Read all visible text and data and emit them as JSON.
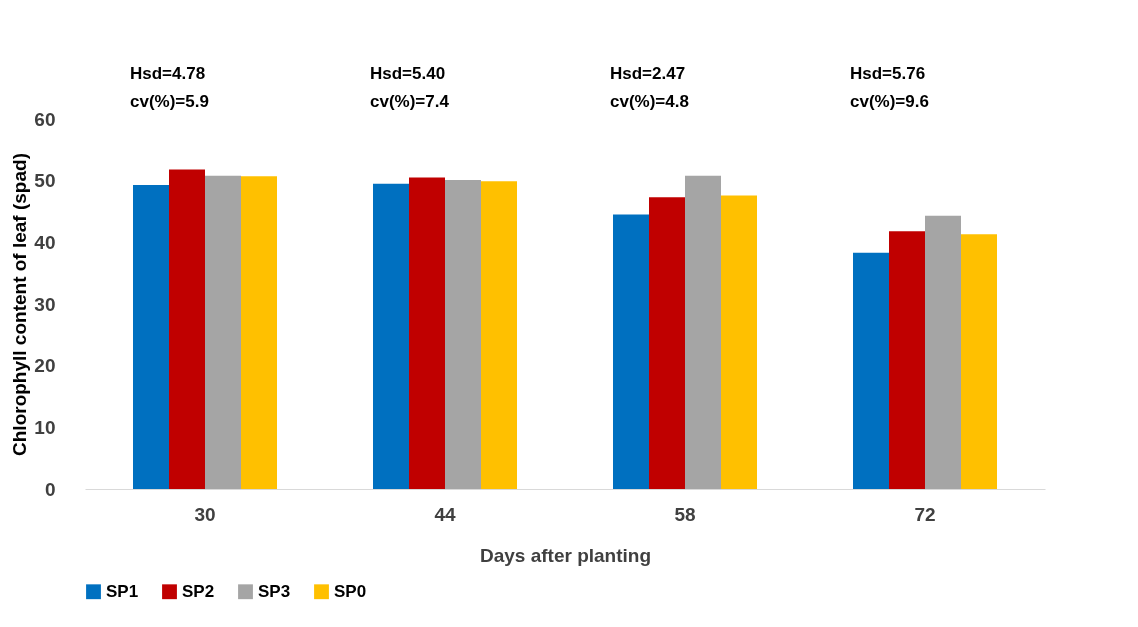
{
  "chart_data": {
    "type": "bar",
    "xlabel": "Days after planting",
    "ylabel": "Chlorophyll content of leaf (spad)",
    "categories": [
      "30",
      "44",
      "58",
      "72"
    ],
    "series": [
      {
        "name": "SP1",
        "color": "#0070c0",
        "values": [
          49.3,
          49.5,
          44.5,
          38.3
        ]
      },
      {
        "name": "SP2",
        "color": "#c00000",
        "values": [
          51.8,
          50.5,
          47.3,
          41.8
        ]
      },
      {
        "name": "SP3",
        "color": "#a5a5a5",
        "values": [
          50.8,
          50.1,
          50.8,
          44.3
        ]
      },
      {
        "name": "SP0",
        "color": "#ffc000",
        "values": [
          50.7,
          49.9,
          47.6,
          41.3
        ]
      }
    ],
    "ylim": [
      0,
      60
    ],
    "yticks": [
      0,
      10,
      20,
      30,
      40,
      50,
      60
    ],
    "grid": false,
    "legend": "bottom",
    "annotations": [
      "Hsd=4.78",
      "cv(%)=5.9",
      "Hsd=5.40",
      "cv(%)=7.4",
      "Hsd=2.47",
      "cv(%)=4.8",
      "Hsd=5.76",
      "cv(%)=9.6"
    ]
  }
}
